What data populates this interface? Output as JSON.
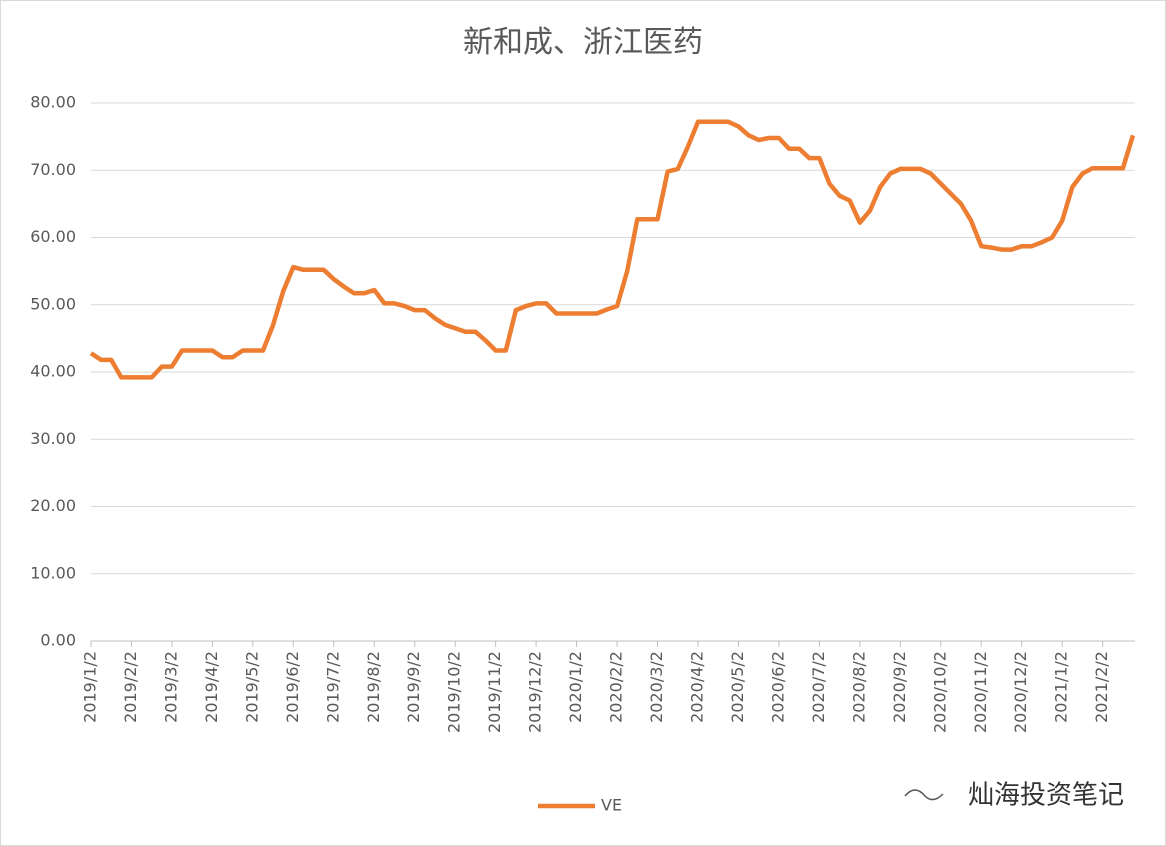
{
  "chart_data": {
    "type": "line",
    "title": "新和成、浙江医药",
    "watermark": "灿海投资笔记",
    "categories": [
      "2019/1/2",
      null,
      null,
      null,
      "2019/2/2",
      null,
      null,
      null,
      "2019/3/2",
      null,
      null,
      null,
      "2019/4/2",
      null,
      null,
      null,
      "2019/5/2",
      null,
      null,
      null,
      "2019/6/2",
      null,
      null,
      null,
      "2019/7/2",
      null,
      null,
      null,
      "2019/8/2",
      null,
      null,
      null,
      "2019/9/2",
      null,
      null,
      null,
      "2019/10/2",
      null,
      null,
      null,
      "2019/11/2",
      null,
      null,
      null,
      "2019/12/2",
      null,
      null,
      null,
      "2020/1/2",
      null,
      null,
      null,
      "2020/2/2",
      null,
      null,
      null,
      "2020/3/2",
      null,
      null,
      null,
      "2020/4/2",
      null,
      null,
      null,
      "2020/5/2",
      null,
      null,
      null,
      "2020/6/2",
      null,
      null,
      null,
      "2020/7/2",
      null,
      null,
      null,
      "2020/8/2",
      null,
      null,
      null,
      "2020/9/2",
      null,
      null,
      null,
      "2020/10/2",
      null,
      null,
      null,
      "2020/11/2",
      null,
      null,
      null,
      "2020/12/2",
      null,
      null,
      null,
      "2021/1/2",
      null,
      null,
      null,
      "2021/2/2",
      null,
      null,
      null
    ],
    "series": [
      {
        "name": "VE",
        "color": "#ed7d31",
        "values": [
          42.8,
          41.8,
          41.8,
          39.2,
          39.2,
          39.2,
          39.2,
          40.8,
          40.8,
          43.2,
          43.2,
          43.2,
          43.2,
          42.2,
          42.2,
          43.2,
          43.2,
          43.2,
          47,
          52,
          55.6,
          55.2,
          55.2,
          55.2,
          53.8,
          52.7,
          51.7,
          51.7,
          52.2,
          50.2,
          50.2,
          49.8,
          49.2,
          49.2,
          48,
          47,
          46.5,
          46,
          46,
          44.7,
          43.2,
          43.2,
          49.2,
          49.8,
          50.2,
          50.2,
          48.7,
          48.7,
          48.7,
          48.7,
          48.7,
          49.3,
          49.8,
          55,
          62.7,
          62.7,
          62.7,
          69.8,
          70.2,
          73.5,
          77.2,
          77.2,
          77.2,
          77.2,
          76.5,
          75.2,
          74.5,
          74.8,
          74.8,
          73.2,
          73.2,
          71.8,
          71.8,
          68,
          66.2,
          65.5,
          62.2,
          64,
          67.5,
          69.5,
          70.2,
          70.2,
          70.2,
          69.5,
          68,
          66.5,
          65,
          62.5,
          58.7,
          58.5,
          58.2,
          58.2,
          58.7,
          58.7,
          59.3,
          60,
          62.5,
          67.5,
          69.5,
          70.3,
          70.3,
          70.3,
          70.3,
          75.2
        ]
      }
    ],
    "ylim": [
      0,
      80
    ],
    "yticks": [
      {
        "value": 0,
        "label": "0.00"
      },
      {
        "value": 10,
        "label": "10.00"
      },
      {
        "value": 20,
        "label": "20.00"
      },
      {
        "value": 30,
        "label": "30.00"
      },
      {
        "value": 40,
        "label": "40.00"
      },
      {
        "value": 50,
        "label": "50.00"
      },
      {
        "value": 60,
        "label": "60.00"
      },
      {
        "value": 70,
        "label": "70.00"
      },
      {
        "value": 80,
        "label": "80.00"
      }
    ],
    "grid": true,
    "legend": "bottom"
  }
}
